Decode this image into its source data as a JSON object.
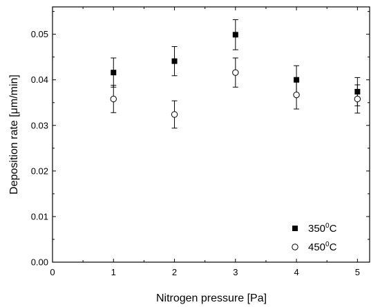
{
  "chart_data": {
    "type": "scatter",
    "title": "",
    "xlabel": "Nitrogen pressure [Pa]",
    "ylabel": "Deposition rate [μm/min]",
    "xlim": [
      0,
      5.2
    ],
    "ylim": [
      0,
      0.056
    ],
    "x_ticks": [
      0,
      1,
      2,
      3,
      4,
      5
    ],
    "x_tick_labels": [
      "0",
      "1",
      "2",
      "3",
      "4",
      "5"
    ],
    "y_ticks": [
      0,
      0.01,
      0.02,
      0.03,
      0.04,
      0.05
    ],
    "y_tick_labels": [
      "0.00",
      "0.01",
      "0.02",
      "0.03",
      "0.04",
      "0.05"
    ],
    "grid": false,
    "legend_position": "bottom-right",
    "series": [
      {
        "name": "350",
        "name_superscript": "0",
        "name_suffix": "C",
        "marker": "filled-square",
        "color": "#000000",
        "x": [
          1,
          2,
          3,
          4,
          5
        ],
        "y": [
          0.0416,
          0.0441,
          0.0499,
          0.04,
          0.0374
        ],
        "err": [
          0.0032,
          0.0032,
          0.0033,
          0.0031,
          0.0031
        ]
      },
      {
        "name": "450",
        "name_superscript": "0",
        "name_suffix": "C",
        "marker": "open-circle",
        "color": "#000000",
        "x": [
          1,
          2,
          3,
          4,
          5
        ],
        "y": [
          0.0358,
          0.0324,
          0.0416,
          0.0367,
          0.0358
        ],
        "err": [
          0.003,
          0.003,
          0.0032,
          0.0031,
          0.0031
        ]
      }
    ]
  }
}
